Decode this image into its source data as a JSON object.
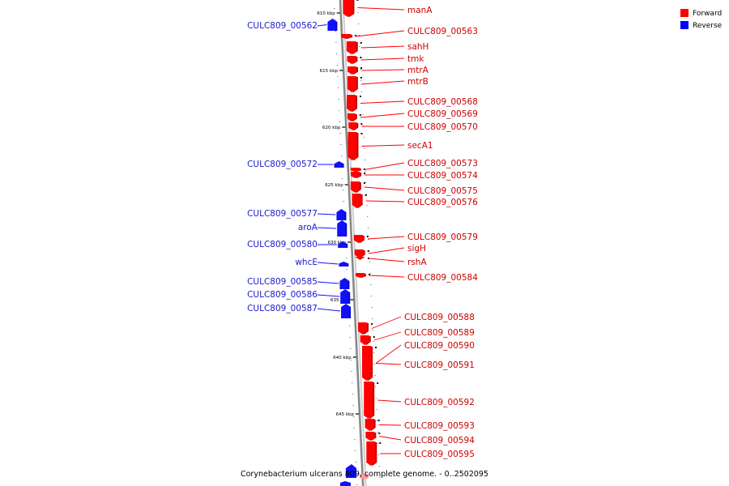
{
  "title": "Corynebacterium ulcerans 809, complete genome. - 0..2502095",
  "legend": [
    {
      "name": "Forward",
      "color": "#ff0000"
    },
    {
      "name": "Reverse",
      "color": "#0000ff"
    }
  ],
  "ticks": [
    "610 kbp",
    "615 kbp",
    "620 kbp",
    "625 kbp",
    "630 kbp",
    "635 kbp",
    "640 kbp",
    "645 kbp"
  ],
  "forward_genes": [
    "manA",
    "CULC809_00563",
    "sahH",
    "tmk",
    "mtrA",
    "mtrB",
    "CULC809_00568",
    "CULC809_00569",
    "CULC809_00570",
    "secA1",
    "CULC809_00573",
    "CULC809_00574",
    "CULC809_00575",
    "CULC809_00576",
    "CULC809_00579",
    "sigH",
    "rshA",
    "CULC809_00584",
    "CULC809_00588",
    "CULC809_00589",
    "CULC809_00590",
    "CULC809_00591",
    "CULC809_00592",
    "CULC809_00593",
    "CULC809_00594",
    "CULC809_00595"
  ],
  "reverse_genes": [
    "CULC809_00562",
    "CULC809_00572",
    "CULC809_00577",
    "aroA",
    "CULC809_00580",
    "whcE",
    "CULC809_00585",
    "CULC809_00586",
    "CULC809_00587"
  ],
  "colors": {
    "forward": "#ff0000",
    "reverse": "#1010ff",
    "backbone": "#888888"
  }
}
